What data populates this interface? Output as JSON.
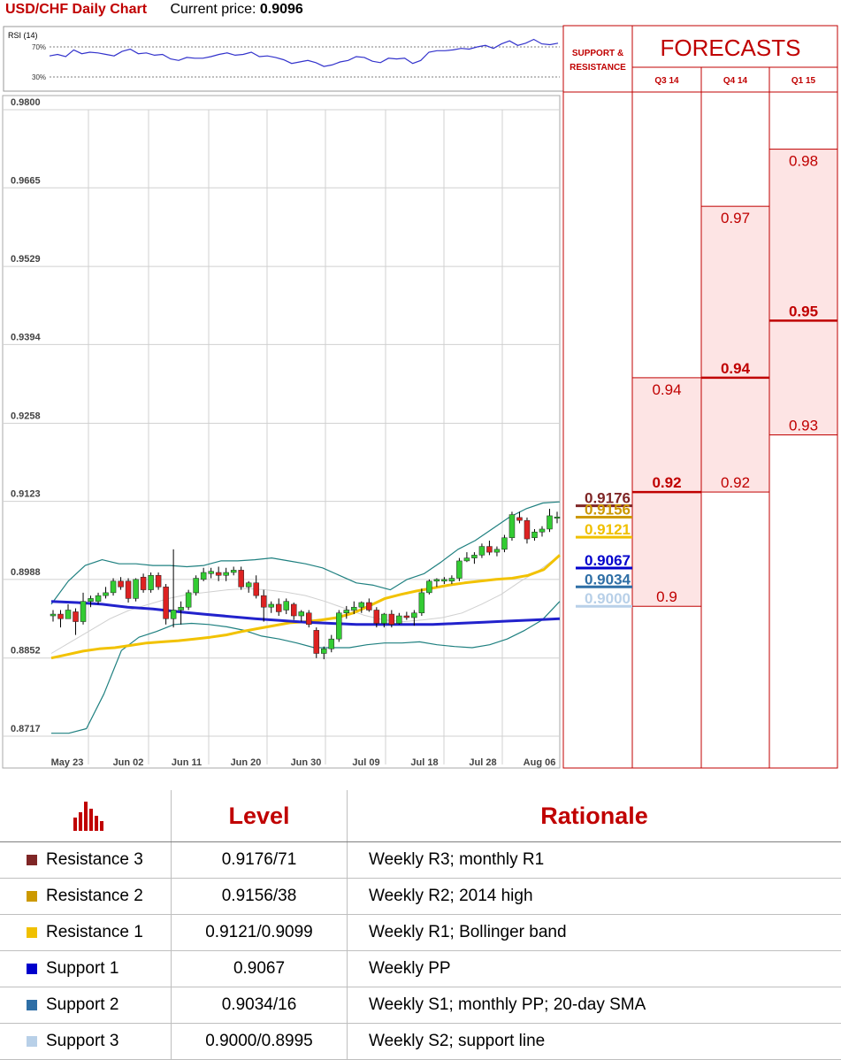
{
  "header": {
    "title": "USD/CHF Daily Chart",
    "current_price_label": "Current price:",
    "current_price": "0.9096"
  },
  "rsi": {
    "label": "RSI (14)",
    "levels": [
      "70%",
      "30%"
    ],
    "values": [
      58,
      60,
      57,
      66,
      61,
      63,
      62,
      60,
      58,
      64,
      67,
      61,
      62,
      59,
      60,
      54,
      52,
      56,
      55,
      55,
      57,
      60,
      62,
      59,
      60,
      63,
      57,
      58,
      56,
      53,
      48,
      50,
      52,
      49,
      44,
      46,
      50,
      52,
      57,
      56,
      51,
      49,
      55,
      54,
      55,
      48,
      52,
      63,
      65,
      65,
      66,
      68,
      67,
      70,
      72,
      68,
      74,
      78,
      72,
      75,
      80,
      74,
      73,
      75
    ]
  },
  "colors": {
    "bull": "#33cc33",
    "bear": "#dd2222",
    "sma_long": "#f2c200",
    "sma_mid": "#2222cc",
    "bollinger": "#1f8080",
    "sma_short": "#d0d0d0",
    "accent": "#c00000",
    "forecast_fill": "#fde4e4",
    "resistance3": "#7f2626",
    "resistance2": "#cc9900",
    "resistance1": "#f0c000",
    "support1": "#0000cc",
    "support2": "#2f6fa6",
    "support3": "#b8d0e8"
  },
  "chart_data": [
    {
      "type": "candlestick",
      "title": "USD/CHF Daily Chart",
      "x_ticks": [
        "May 23",
        "Jun 02",
        "Jun 11",
        "Jun 20",
        "Jun 30",
        "Jul 09",
        "Jul 18",
        "Jul 28",
        "Aug 06"
      ],
      "y_ticks": [
        "0.9800",
        "0.9665",
        "0.9529",
        "0.9394",
        "0.9258",
        "0.9123",
        "0.8988",
        "0.8852",
        "0.8717"
      ],
      "ylim": [
        0.8717,
        0.98
      ],
      "grid": true,
      "candles": [
        [
          0.8925,
          0.8935,
          0.8915,
          0.8928
        ],
        [
          0.8928,
          0.8935,
          0.8905,
          0.892
        ],
        [
          0.892,
          0.8945,
          0.892,
          0.8935
        ],
        [
          0.8932,
          0.8938,
          0.8892,
          0.8915
        ],
        [
          0.8915,
          0.8965,
          0.891,
          0.895
        ],
        [
          0.895,
          0.896,
          0.894,
          0.8955
        ],
        [
          0.895,
          0.8965,
          0.8945,
          0.896
        ],
        [
          0.896,
          0.8975,
          0.8955,
          0.8965
        ],
        [
          0.8965,
          0.899,
          0.896,
          0.8985
        ],
        [
          0.8985,
          0.8992,
          0.897,
          0.8975
        ],
        [
          0.8985,
          0.899,
          0.8948,
          0.8955
        ],
        [
          0.8955,
          0.899,
          0.895,
          0.8988
        ],
        [
          0.8992,
          0.8998,
          0.8965,
          0.897
        ],
        [
          0.897,
          0.9,
          0.8965,
          0.8995
        ],
        [
          0.8995,
          0.9,
          0.897,
          0.8975
        ],
        [
          0.8975,
          0.898,
          0.891,
          0.892
        ],
        [
          0.892,
          0.904,
          0.8905,
          0.8935
        ],
        [
          0.8935,
          0.895,
          0.891,
          0.894
        ],
        [
          0.894,
          0.897,
          0.8935,
          0.8965
        ],
        [
          0.8965,
          0.8995,
          0.896,
          0.899
        ],
        [
          0.8988,
          0.9008,
          0.8985,
          0.9
        ],
        [
          0.8998,
          0.9008,
          0.899,
          0.9002
        ],
        [
          0.9,
          0.901,
          0.8985,
          0.8995
        ],
        [
          0.8995,
          0.9008,
          0.8985,
          0.9
        ],
        [
          0.9,
          0.901,
          0.8995,
          0.9004
        ],
        [
          0.9004,
          0.901,
          0.897,
          0.8975
        ],
        [
          0.8975,
          0.8985,
          0.8965,
          0.8982
        ],
        [
          0.8982,
          0.8995,
          0.8955,
          0.896
        ],
        [
          0.896,
          0.897,
          0.8915,
          0.894
        ],
        [
          0.894,
          0.895,
          0.893,
          0.8945
        ],
        [
          0.8945,
          0.8955,
          0.8925,
          0.8932
        ],
        [
          0.8935,
          0.8955,
          0.8928,
          0.895
        ],
        [
          0.8945,
          0.8948,
          0.8918,
          0.8925
        ],
        [
          0.8925,
          0.8935,
          0.8915,
          0.8932
        ],
        [
          0.893,
          0.8935,
          0.8905,
          0.891
        ],
        [
          0.89,
          0.8905,
          0.8852,
          0.886
        ],
        [
          0.886,
          0.8872,
          0.885,
          0.8868
        ],
        [
          0.8868,
          0.8892,
          0.8862,
          0.8885
        ],
        [
          0.8885,
          0.8935,
          0.888,
          0.893
        ],
        [
          0.893,
          0.8942,
          0.892,
          0.8935
        ],
        [
          0.8935,
          0.895,
          0.8928,
          0.894
        ],
        [
          0.894,
          0.895,
          0.893,
          0.8948
        ],
        [
          0.8948,
          0.8955,
          0.8932,
          0.8935
        ],
        [
          0.8935,
          0.894,
          0.8905,
          0.8912
        ],
        [
          0.8912,
          0.893,
          0.8905,
          0.8928
        ],
        [
          0.8928,
          0.8935,
          0.8905,
          0.891
        ],
        [
          0.8912,
          0.893,
          0.891,
          0.8925
        ],
        [
          0.8925,
          0.8932,
          0.8918,
          0.8922
        ],
        [
          0.8922,
          0.8935,
          0.8908,
          0.893
        ],
        [
          0.893,
          0.8972,
          0.8925,
          0.8965
        ],
        [
          0.8965,
          0.8988,
          0.8962,
          0.8985
        ],
        [
          0.8985,
          0.899,
          0.8975,
          0.8988
        ],
        [
          0.8985,
          0.8992,
          0.898,
          0.8988
        ],
        [
          0.8985,
          0.8995,
          0.898,
          0.899
        ],
        [
          0.899,
          0.9025,
          0.8985,
          0.902
        ],
        [
          0.902,
          0.9035,
          0.9018,
          0.9025
        ],
        [
          0.9025,
          0.9035,
          0.9015,
          0.903
        ],
        [
          0.903,
          0.905,
          0.9025,
          0.9045
        ],
        [
          0.9045,
          0.9055,
          0.903,
          0.9035
        ],
        [
          0.9035,
          0.9045,
          0.9028,
          0.904
        ],
        [
          0.904,
          0.9065,
          0.9035,
          0.906
        ],
        [
          0.906,
          0.9105,
          0.9055,
          0.91
        ],
        [
          0.9095,
          0.9105,
          0.9085,
          0.909
        ],
        [
          0.909,
          0.9095,
          0.905,
          0.9058
        ],
        [
          0.906,
          0.9075,
          0.9055,
          0.907
        ],
        [
          0.907,
          0.908,
          0.9062,
          0.9075
        ],
        [
          0.9075,
          0.911,
          0.907,
          0.9098
        ],
        [
          0.9095,
          0.9105,
          0.9085,
          0.9096
        ]
      ],
      "series": [
        {
          "label": "sma_long",
          "values": [
            0.8852,
            0.8858,
            0.8864,
            0.8868,
            0.887,
            0.8874,
            0.8878,
            0.888,
            0.8882,
            0.8885,
            0.8888,
            0.8892,
            0.8898,
            0.8903,
            0.8908,
            0.8913,
            0.8915,
            0.8918,
            0.8922,
            0.893,
            0.8942,
            0.8955,
            0.8962,
            0.8968,
            0.8973,
            0.8978,
            0.8982,
            0.8985,
            0.8988,
            0.899,
            0.8995,
            0.9005,
            0.903
          ]
        },
        {
          "label": "sma_mid",
          "values": [
            0.895,
            0.8948,
            0.8945,
            0.894,
            0.8937,
            0.8932,
            0.8928,
            0.8924,
            0.892,
            0.8917,
            0.8914,
            0.8912,
            0.891,
            0.891,
            0.891,
            0.891,
            0.8912,
            0.8914,
            0.8916,
            0.8918,
            0.892
          ]
        },
        {
          "label": "bollinger_upper",
          "values": [
            0.8945,
            0.8985,
            0.9012,
            0.9022,
            0.9015,
            0.9015,
            0.9012,
            0.9012,
            0.901,
            0.9012,
            0.902,
            0.902,
            0.9022,
            0.9025,
            0.902,
            0.9015,
            0.9008,
            0.8995,
            0.8982,
            0.8978,
            0.897,
            0.8988,
            0.8998,
            0.9018,
            0.904,
            0.9055,
            0.9075,
            0.9095,
            0.911,
            0.912,
            0.9122
          ]
        },
        {
          "label": "bollinger_lower",
          "values": [
            0.8722,
            0.8722,
            0.873,
            0.879,
            0.8865,
            0.8888,
            0.8898,
            0.891,
            0.8912,
            0.891,
            0.8906,
            0.89,
            0.889,
            0.8885,
            0.8878,
            0.887,
            0.887,
            0.887,
            0.8875,
            0.8878,
            0.8878,
            0.888,
            0.8875,
            0.8872,
            0.887,
            0.8875,
            0.8885,
            0.89,
            0.8918,
            0.895
          ]
        },
        {
          "label": "sma_short",
          "values": [
            0.886,
            0.888,
            0.89,
            0.892,
            0.8935,
            0.8945,
            0.8955,
            0.8962,
            0.8966,
            0.897,
            0.8972,
            0.897,
            0.8966,
            0.896,
            0.895,
            0.8938,
            0.8926,
            0.8918,
            0.8915,
            0.8918,
            0.8922,
            0.893,
            0.8945,
            0.8962,
            0.8985,
            0.9005,
            0.903
          ]
        }
      ],
      "support_resistance": [
        {
          "label": "resistance3",
          "value": "0.9176"
        },
        {
          "label": "resistance2",
          "value": "0.9156"
        },
        {
          "label": "resistance1",
          "value": "0.9121"
        },
        {
          "label": "support1",
          "value": "0.9067"
        },
        {
          "label": "support2",
          "value": "0.9034"
        },
        {
          "label": "support3",
          "value": "0.9000"
        }
      ]
    },
    {
      "type": "table",
      "title": "FORECASTS",
      "section_label": "SUPPORT & RESISTANCE",
      "columns": [
        {
          "name": "Q3 14",
          "high": 0.94,
          "low": 0.9,
          "mid": 0.92,
          "labels": [
            "0.94",
            "0.92",
            "0.9"
          ]
        },
        {
          "name": "Q4 14",
          "high": 0.97,
          "low": 0.92,
          "mid": 0.94,
          "labels": [
            "0.97",
            "0.94",
            "0.92"
          ]
        },
        {
          "name": "Q1 15",
          "high": 0.98,
          "low": 0.93,
          "mid": 0.95,
          "labels": [
            "0.98",
            "0.95",
            "0.93"
          ]
        }
      ]
    }
  ],
  "table": {
    "headers": {
      "level": "Level",
      "rationale": "Rationale"
    },
    "rows": [
      {
        "name": "Resistance 3",
        "level": "0.9176/71",
        "rationale": "Weekly R3; monthly R1",
        "color_key": "resistance3"
      },
      {
        "name": "Resistance 2",
        "level": "0.9156/38",
        "rationale": "Weekly R2; 2014 high",
        "color_key": "resistance2"
      },
      {
        "name": "Resistance 1",
        "level": "0.9121/0.9099",
        "rationale": "Weekly R1; Bollinger band",
        "color_key": "resistance1"
      },
      {
        "name": "Support 1",
        "level": "0.9067",
        "rationale": "Weekly PP",
        "color_key": "support1"
      },
      {
        "name": "Support 2",
        "level": "0.9034/16",
        "rationale": "Weekly S1; monthly PP; 20-day SMA",
        "color_key": "support2"
      },
      {
        "name": "Support 3",
        "level": "0.9000/0.8995",
        "rationale": "Weekly S2; support line",
        "color_key": "support3"
      }
    ]
  }
}
